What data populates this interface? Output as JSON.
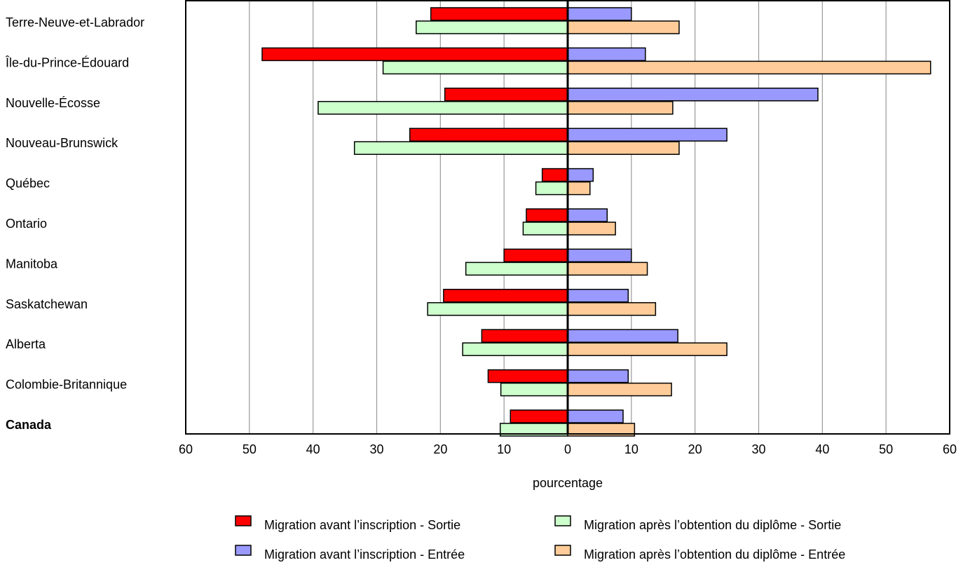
{
  "chart_data": {
    "type": "bar",
    "orientation": "horizontal-diverging",
    "categories": [
      "Terre-Neuve-et-Labrador",
      "Île-du-Prince-Édouard",
      "Nouvelle-Écosse",
      "Nouveau-Brunswick",
      "Québec",
      "Ontario",
      "Manitoba",
      "Saskatchewan",
      "Alberta",
      "Colombie-Britannique",
      "Canada"
    ],
    "bold_categories": [
      "Canada"
    ],
    "series": [
      {
        "name": "Migration avant l’inscription - Sortie",
        "side": "left",
        "row": "top",
        "color": "#ff0000",
        "values": [
          21.5,
          48,
          19.3,
          24.8,
          4,
          6.5,
          10,
          19.5,
          13.5,
          12.5,
          9
        ]
      },
      {
        "name": "Migration avant l’inscription - Entrée",
        "side": "right",
        "row": "top",
        "color": "#9999ff",
        "values": [
          10,
          12.2,
          39.3,
          25,
          4,
          6.2,
          10,
          9.5,
          17.3,
          9.5,
          8.7
        ]
      },
      {
        "name": "Migration après l’obtention du diplôme - Sortie",
        "side": "left",
        "row": "bottom",
        "color": "#ccffcc",
        "values": [
          23.8,
          29,
          39.2,
          33.5,
          5,
          7,
          16,
          22,
          16.5,
          10.5,
          10.6
        ]
      },
      {
        "name": "Migration après l’obtention du diplôme - Entrée",
        "side": "right",
        "row": "bottom",
        "color": "#ffcc99",
        "values": [
          17.5,
          57,
          16.5,
          17.5,
          3.5,
          7.5,
          12.5,
          13.8,
          25,
          16.3,
          10.5
        ]
      }
    ],
    "xlabel": "pourcentage",
    "xticks": [
      60,
      50,
      40,
      30,
      20,
      10,
      0,
      10,
      20,
      30,
      40,
      50,
      60
    ],
    "xlim": [
      -60,
      60
    ],
    "grid": true,
    "legend_position": "bottom"
  }
}
